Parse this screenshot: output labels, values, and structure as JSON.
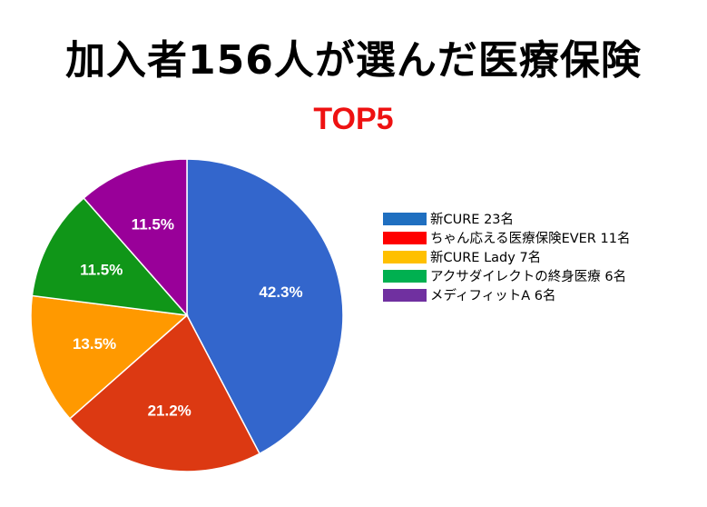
{
  "chart_data": {
    "type": "pie",
    "title": "加入者156人が選んだ医療保険",
    "subtitle": "TOP5",
    "subtitle_color": "#ee1111",
    "slices": [
      {
        "label": "新CURE 23名",
        "value": 42.3,
        "display": "42.3%",
        "color": "#3366cc",
        "legend_color": "#1f6fc0"
      },
      {
        "label": "ちゃん応える医療保険EVER 11名",
        "value": 21.2,
        "display": "21.2%",
        "color": "#dc3912",
        "legend_color": "#ff0000"
      },
      {
        "label": "新CURE Lady 7名",
        "value": 13.5,
        "display": "13.5%",
        "color": "#ff9900",
        "legend_color": "#ffc000"
      },
      {
        "label": "アクサダイレクトの終身医療 6名",
        "value": 11.5,
        "display": "11.5%",
        "color": "#109618",
        "legend_color": "#00b050"
      },
      {
        "label": "メディフィットA 6名",
        "value": 11.5,
        "display": "11.5%",
        "color": "#990099",
        "legend_color": "#7030a0"
      }
    ],
    "legend_position": "right",
    "label_color": "#ffffff"
  }
}
